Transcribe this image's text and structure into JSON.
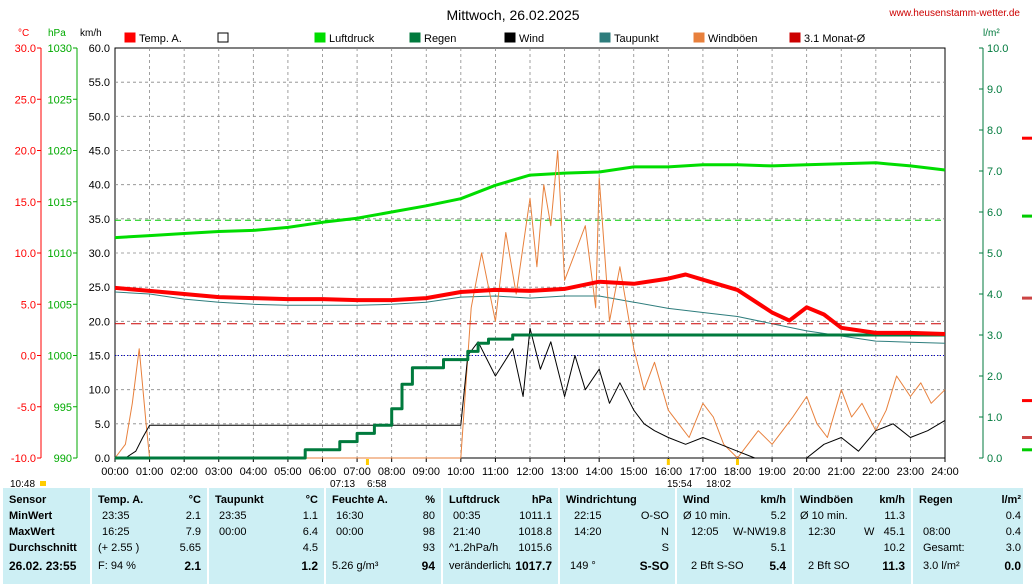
{
  "title": "Mittwoch, 26.02.2025",
  "site": "www.heusenstamm-wetter.de",
  "units": {
    "temp": "°C",
    "pressure": "hPa",
    "wind": "km/h",
    "rain": "l/m²"
  },
  "left_axes": {
    "temp_ticks": [
      "30.0",
      "25.0",
      "20.0",
      "15.0",
      "10.0",
      "5.0",
      "0.0",
      "-5.0",
      "-10.0"
    ],
    "pressure_ticks": [
      "1030",
      "1025",
      "1020",
      "1015",
      "1010",
      "1005",
      "1000",
      "995",
      "990"
    ],
    "wind_ticks": [
      "60.0",
      "55.0",
      "50.0",
      "45.0",
      "40.0",
      "35.0",
      "30.0",
      "25.0",
      "20.0",
      "15.0",
      "10.0",
      "5.0",
      "0.0"
    ]
  },
  "right_axis_ticks": [
    "10.0",
    "9.0",
    "8.0",
    "7.0",
    "6.0",
    "5.0",
    "4.0",
    "3.0",
    "2.0",
    "1.0",
    "0.0"
  ],
  "x_ticks": [
    "00:00",
    "01:00",
    "02:00",
    "03:00",
    "04:00",
    "05:00",
    "06:00",
    "07:00",
    "08:00",
    "09:00",
    "10:00",
    "11:00",
    "12:00",
    "13:00",
    "14:00",
    "15:00",
    "16:00",
    "17:00",
    "18:00",
    "19:00",
    "20:00",
    "21:00",
    "22:00",
    "23:00",
    "24:00"
  ],
  "sun_times": {
    "sunrise": "07:13",
    "civil_dawn": "6:58",
    "sunset": "18:02",
    "sunset_marker": "15:54",
    "start": "10:48"
  },
  "legend": [
    {
      "label": "Temp. A.",
      "color": "#ff0000"
    },
    {
      "label": "",
      "color": "#ffffff"
    },
    {
      "label": "Luftdruck",
      "color": "#00dd00"
    },
    {
      "label": "Regen",
      "color": "#007a3d"
    },
    {
      "label": "Wind",
      "color": "#000000"
    },
    {
      "label": "Taupunkt",
      "color": "#2e7d7d"
    },
    {
      "label": "Windböen",
      "color": "#e8803c"
    },
    {
      "label": "3.1 Monat-Ø",
      "color": "#cc0000"
    }
  ],
  "chart_data": {
    "type": "line",
    "title": "Mittwoch, 26.02.2025",
    "x_range": [
      0,
      24
    ],
    "axes": {
      "wind_kmh": [
        0,
        60
      ],
      "temp_c": [
        -10,
        30
      ],
      "pressure_hpa": [
        990,
        1030
      ],
      "rain_lm2": [
        0,
        10
      ]
    },
    "grid": true,
    "series": [
      {
        "name": "Temp. A.",
        "axis": "temp_c",
        "color": "#ff0000",
        "x": [
          0,
          1,
          2,
          3,
          4,
          5,
          6,
          7,
          8,
          9,
          10,
          11,
          12,
          13,
          14,
          15,
          16,
          16.5,
          17,
          18,
          19,
          19.5,
          20,
          20.5,
          21,
          22,
          23,
          24
        ],
        "y": [
          6.6,
          6.3,
          6.0,
          5.7,
          5.6,
          5.5,
          5.5,
          5.4,
          5.4,
          5.6,
          6.2,
          6.4,
          6.3,
          6.5,
          7.2,
          7.0,
          7.5,
          7.9,
          7.4,
          6.4,
          4.2,
          3.4,
          4.7,
          4.0,
          2.7,
          2.2,
          2.2,
          2.1
        ]
      },
      {
        "name": "Taupunkt",
        "axis": "temp_c",
        "color": "#2e7d7d",
        "x": [
          0,
          1,
          2,
          3,
          4,
          5,
          6,
          7,
          8,
          9,
          10,
          11,
          12,
          13,
          14,
          15,
          16,
          17,
          18,
          19,
          20,
          21,
          22,
          23,
          24
        ],
        "y": [
          6.2,
          6.0,
          5.5,
          5.2,
          5.0,
          4.9,
          4.9,
          4.9,
          5.0,
          5.2,
          5.7,
          5.8,
          5.6,
          5.8,
          5.8,
          5.2,
          4.6,
          4.2,
          3.8,
          3.1,
          2.4,
          1.9,
          1.4,
          1.3,
          1.2
        ]
      },
      {
        "name": "Luftdruck",
        "axis": "pressure_hpa",
        "color": "#00dd00",
        "x": [
          0,
          1,
          2,
          3,
          4,
          5,
          6,
          7,
          8,
          9,
          10,
          11,
          12,
          13,
          14,
          15,
          16,
          17,
          18,
          19,
          20,
          21,
          22,
          23,
          24
        ],
        "y": [
          1011.5,
          1011.7,
          1011.9,
          1012.1,
          1012.2,
          1012.5,
          1013.0,
          1013.4,
          1014.0,
          1014.6,
          1015.3,
          1016.6,
          1017.6,
          1017.8,
          1017.9,
          1018.4,
          1018.4,
          1018.6,
          1018.6,
          1018.5,
          1018.6,
          1018.7,
          1018.8,
          1018.5,
          1018.1
        ]
      },
      {
        "name": "Regen",
        "axis": "rain_lm2",
        "color": "#007a3d",
        "x": [
          0,
          5.5,
          5.5,
          6.5,
          6.5,
          7,
          7,
          7.5,
          7.5,
          8,
          8,
          8.3,
          8.3,
          8.6,
          8.6,
          9.5,
          9.5,
          10.2,
          10.2,
          10.5,
          10.5,
          10.8,
          10.8,
          11.5,
          11.5,
          24
        ],
        "y": [
          0,
          0,
          0.2,
          0.2,
          0.4,
          0.4,
          0.6,
          0.6,
          0.8,
          0.8,
          1.2,
          1.2,
          1.8,
          1.8,
          2.2,
          2.2,
          2.4,
          2.4,
          2.6,
          2.6,
          2.8,
          2.8,
          2.9,
          2.9,
          3.0,
          3.0
        ]
      },
      {
        "name": "Wind",
        "axis": "wind_kmh",
        "color": "#000000",
        "x": [
          0,
          0.3,
          0.6,
          0.8,
          1,
          2,
          5,
          8,
          10,
          10.2,
          10.5,
          11,
          11.5,
          11.8,
          12,
          12.3,
          12.6,
          13,
          13.3,
          13.6,
          14,
          14.3,
          14.6,
          15,
          15.3,
          15.6,
          16,
          16.5,
          17,
          17.5,
          18,
          18.5,
          19,
          19.5,
          20,
          20.5,
          21,
          21.5,
          22,
          22.5,
          23,
          23.5,
          24
        ],
        "y": [
          0,
          0,
          1,
          3,
          4.8,
          4.8,
          4.8,
          4.8,
          4.8,
          15,
          17,
          12,
          16,
          9,
          19,
          13,
          17,
          9,
          15,
          10,
          13,
          8,
          11,
          7,
          5,
          4,
          3,
          2,
          3,
          2,
          1,
          0,
          0,
          0,
          0,
          2,
          3,
          1,
          4,
          5,
          3,
          4,
          5.5
        ]
      },
      {
        "name": "Windböen",
        "axis": "wind_kmh",
        "color": "#e8803c",
        "x": [
          0,
          0.3,
          0.5,
          0.7,
          0.9,
          1,
          2,
          5,
          10,
          10.3,
          10.6,
          11,
          11.3,
          11.6,
          12,
          12.2,
          12.4,
          12.6,
          12.8,
          13,
          13.3,
          13.6,
          13.9,
          14,
          14.3,
          14.6,
          15,
          15.3,
          15.6,
          16,
          16.3,
          16.6,
          17,
          17.3,
          17.6,
          18,
          18.3,
          18.6,
          19,
          19.3,
          19.6,
          20,
          20.3,
          20.6,
          21,
          21.3,
          21.6,
          22,
          22.3,
          22.6,
          23,
          23.3,
          23.6,
          24
        ],
        "y": [
          0,
          2,
          8,
          16,
          5,
          0,
          0,
          0,
          0,
          22,
          30,
          20,
          33,
          24,
          38,
          28,
          40,
          34,
          45,
          26,
          30,
          34,
          22,
          41,
          20,
          28,
          16,
          10,
          14,
          7,
          5,
          3,
          8,
          6,
          2,
          0,
          2,
          4,
          2,
          4,
          6,
          9,
          5,
          3,
          10,
          6,
          8,
          4,
          7,
          12,
          9,
          11,
          8,
          10
        ]
      },
      {
        "name": "3.1 Monat-Ø",
        "axis": "temp_c",
        "color": "#cc0000",
        "dashed": true,
        "x": [
          0,
          24
        ],
        "y": [
          3.1,
          3.1
        ]
      }
    ],
    "reference_lines": [
      {
        "axis": "pressure_hpa",
        "y": 1013.2,
        "color": "#00cc00",
        "dashed": true
      },
      {
        "axis": "temp_c",
        "y": 0,
        "color": "#0000cc",
        "dotted": true
      }
    ]
  },
  "right_markers": [
    {
      "color": "#ff0000",
      "y_rain": 7.8
    },
    {
      "color": "#00cc00",
      "y_rain": 5.9
    },
    {
      "color": "#cc4444",
      "y_rain": 3.9
    },
    {
      "color": "#ff0000",
      "y_rain": 1.4
    },
    {
      "color": "#cc4444",
      "y_rain": 0.5
    },
    {
      "color": "#00cc00",
      "y_rain": 0.2
    }
  ],
  "summary": {
    "sensor": {
      "h": "Sensor",
      "min": "MinWert",
      "max": "MaxWert",
      "avg": "Durchschnitt",
      "now": "26.02. 23:55"
    },
    "temp": {
      "h": "Temp. A.",
      "u": "°C",
      "min_t": "23:35",
      "min": "2.1",
      "max_t": "16:25",
      "max": "7.9",
      "avg_l": "(+ 2.55 )",
      "avg": "5.65",
      "now_l": "F: 94 %",
      "now": "2.1"
    },
    "dew": {
      "h": "Taupunkt",
      "u": "°C",
      "min_t": "23:35",
      "min": "1.1",
      "max_t": "00:00",
      "max": "6.4",
      "avg": "4.5",
      "now": "1.2"
    },
    "hum": {
      "h": "Feuchte A.",
      "u": "%",
      "min_t": "16:30",
      "min": "80",
      "max_t": "00:00",
      "max": "98",
      "avg": "93",
      "now_l": "5.26 g/m³",
      "now": "94"
    },
    "press": {
      "h": "Luftdruck",
      "u": "hPa",
      "min_t": "00:35",
      "min": "1011.1",
      "max_t": "21:40",
      "max": "1018.8",
      "avg_l": "^1.2hPa/h",
      "avg": "1015.6",
      "now_l": "veränderlich",
      "now": "1017.7",
      "arrow": "↓"
    },
    "dir": {
      "h": "Windrichtung",
      "min_t": "22:15",
      "min": "O-SO",
      "max_t": "14:20",
      "max": "N",
      "avg": "S",
      "now_l": "149 °",
      "now": "S-SO"
    },
    "wind": {
      "h": "Wind",
      "u": "km/h",
      "min_t": "Ø 10 min.",
      "min": "5.2",
      "max_t": "12:05",
      "max_d": "W-NW",
      "max": "19.8",
      "avg": "5.1",
      "now_l": "2 Bft S-SO",
      "now": "5.4"
    },
    "gust": {
      "h": "Windböen",
      "u": "km/h",
      "min_t": "Ø 10 min.",
      "min": "11.3",
      "max_t": "12:30",
      "max_d": "W",
      "max": "45.1",
      "avg": "10.2",
      "now_l": "2 Bft SO",
      "now": "11.3"
    },
    "rain": {
      "h": "Regen",
      "u": "l/m²",
      "min_t": "",
      "min": "0.4",
      "max_t": "08:00",
      "max": "0.4",
      "avg_l": "Gesamt:",
      "avg": "3.0",
      "now_l": "3.0 l/m²",
      "now": "0.0"
    }
  }
}
